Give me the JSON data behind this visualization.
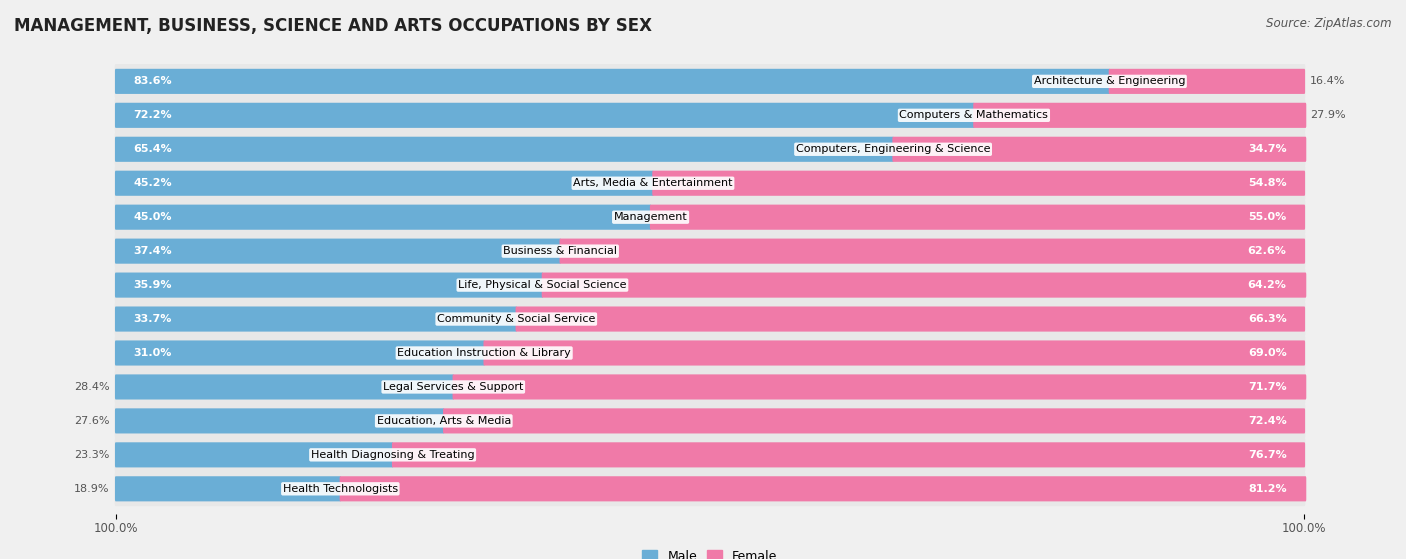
{
  "title": "MANAGEMENT, BUSINESS, SCIENCE AND ARTS OCCUPATIONS BY SEX",
  "source": "Source: ZipAtlas.com",
  "categories": [
    "Architecture & Engineering",
    "Computers & Mathematics",
    "Computers, Engineering & Science",
    "Arts, Media & Entertainment",
    "Management",
    "Business & Financial",
    "Life, Physical & Social Science",
    "Community & Social Service",
    "Education Instruction & Library",
    "Legal Services & Support",
    "Education, Arts & Media",
    "Health Diagnosing & Treating",
    "Health Technologists"
  ],
  "male_pct": [
    83.6,
    72.2,
    65.4,
    45.2,
    45.0,
    37.4,
    35.9,
    33.7,
    31.0,
    28.4,
    27.6,
    23.3,
    18.9
  ],
  "female_pct": [
    16.4,
    27.9,
    34.7,
    54.8,
    55.0,
    62.6,
    64.2,
    66.3,
    69.0,
    71.7,
    72.4,
    76.7,
    81.2
  ],
  "male_color": "#6aaed6",
  "female_color": "#f07aa8",
  "bg_color": "#f0f0f0",
  "row_bg_color": "#e8e8e8",
  "bar_height": 0.62,
  "title_fontsize": 12,
  "label_fontsize": 8.0,
  "pct_fontsize": 8.0,
  "source_fontsize": 8.5,
  "xlim_left": -5,
  "xlim_right": 105
}
